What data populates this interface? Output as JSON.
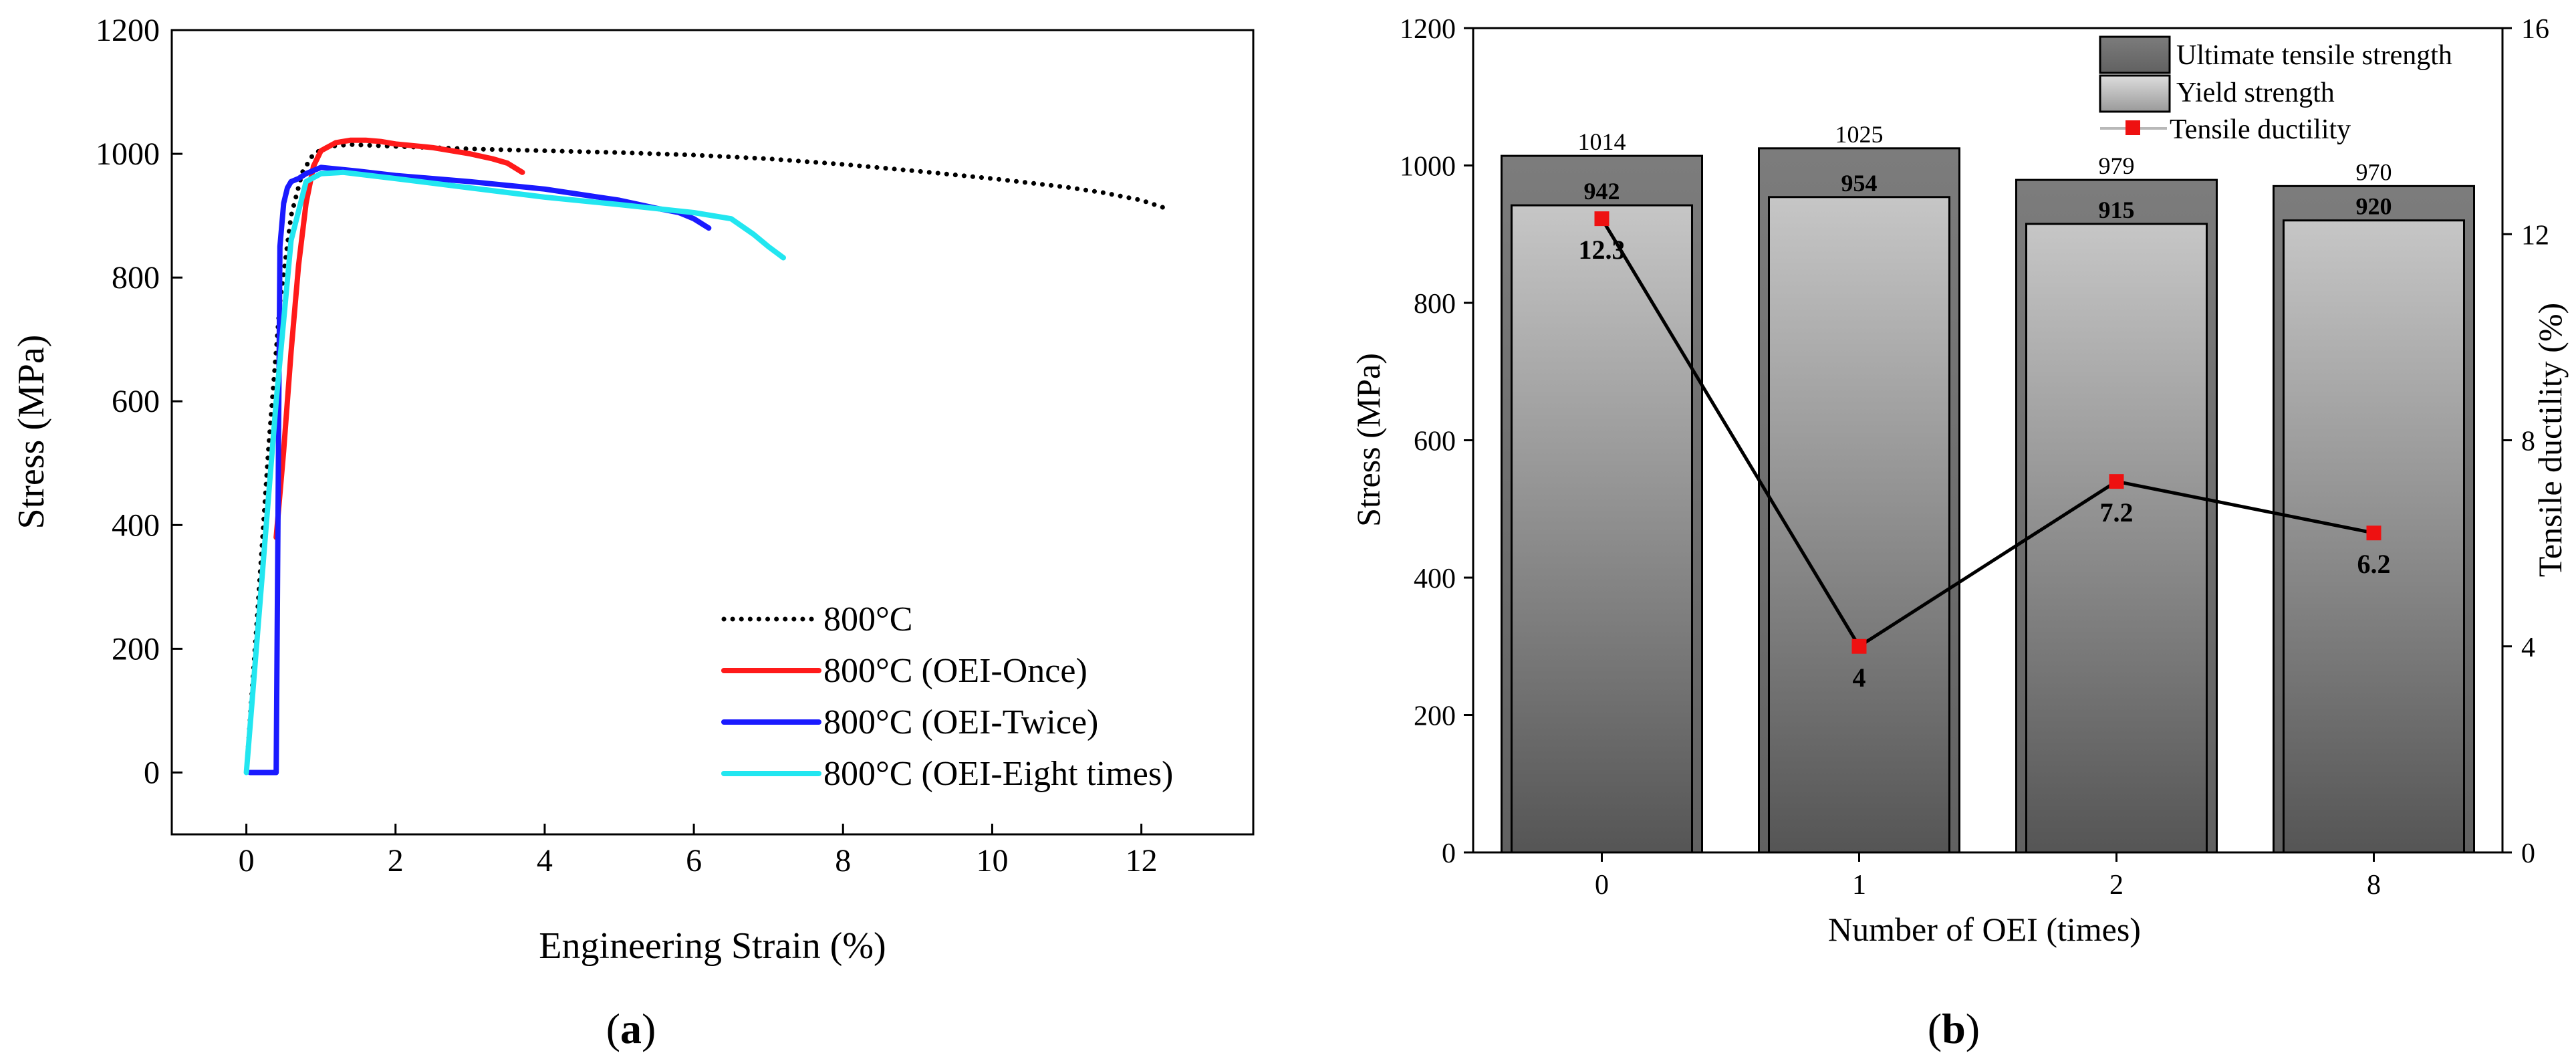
{
  "panels": {
    "a": {
      "caption_letter": "a"
    },
    "b": {
      "caption_letter": "b"
    }
  },
  "chart_data": [
    {
      "id": "a",
      "type": "line",
      "title": "",
      "xlabel": "Engineering Strain (%)",
      "ylabel": "Stress (MPa)",
      "xlim": [
        -1,
        13.5
      ],
      "ylim": [
        -100,
        1200
      ],
      "xticks": [
        0,
        2,
        4,
        6,
        8,
        10,
        12
      ],
      "yticks": [
        0,
        200,
        400,
        600,
        800,
        1000,
        1200
      ],
      "legend_position": "bottom-right",
      "series": [
        {
          "name": "800°C",
          "color": "#000000",
          "style": "dotted",
          "x": [
            0,
            0.15,
            0.3,
            0.45,
            0.6,
            0.75,
            0.9,
            1.1,
            1.4,
            2.0,
            3.0,
            4.0,
            5.0,
            6.0,
            7.0,
            8.0,
            9.0,
            10.0,
            11.0,
            11.5,
            12.0,
            12.3
          ],
          "y": [
            0,
            260,
            530,
            760,
            900,
            970,
            1000,
            1012,
            1015,
            1012,
            1008,
            1005,
            1002,
            998,
            992,
            983,
            972,
            960,
            946,
            937,
            925,
            913
          ]
        },
        {
          "name": "800°C (OEI-Once)",
          "color": "#ff1a1a",
          "style": "solid",
          "x": [
            0.4,
            0.5,
            0.6,
            0.7,
            0.8,
            0.9,
            1.0,
            1.2,
            1.4,
            1.6,
            1.8,
            2.0,
            2.5,
            3.0,
            3.3,
            3.5,
            3.7
          ],
          "y": [
            380,
            520,
            680,
            820,
            920,
            980,
            1005,
            1018,
            1022,
            1022,
            1020,
            1016,
            1010,
            1000,
            992,
            985,
            970
          ]
        },
        {
          "name": "800°C (OEI-Twice)",
          "color": "#1a1aff",
          "style": "solid",
          "x": [
            0.05,
            0.1,
            0.2,
            0.3,
            0.4,
            0.45,
            0.5,
            0.55,
            0.6,
            0.7,
            0.8,
            1.0,
            1.5,
            2.0,
            3.0,
            4.0,
            5.0,
            5.5,
            5.8,
            6.0,
            6.2
          ],
          "y": [
            0,
            0,
            0,
            0,
            0,
            850,
            920,
            945,
            955,
            960,
            968,
            978,
            972,
            965,
            955,
            943,
            925,
            912,
            905,
            895,
            880
          ]
        },
        {
          "name": "800°C (OEI-Eight times)",
          "color": "#22e6f0",
          "style": "solid",
          "x": [
            0,
            0.2,
            0.4,
            0.6,
            0.8,
            1.0,
            1.3,
            2.0,
            3.0,
            4.0,
            5.0,
            6.0,
            6.5,
            6.8,
            7.0,
            7.2
          ],
          "y": [
            0,
            300,
            600,
            860,
            955,
            968,
            970,
            960,
            945,
            930,
            918,
            905,
            895,
            870,
            850,
            832
          ]
        }
      ]
    },
    {
      "id": "b",
      "type": "bar",
      "title": "",
      "xlabel": "Number of OEI (times)",
      "ylabel": "Stress (MPa)",
      "y2label": "Tensile ductility (%)",
      "categories": [
        "0",
        "1",
        "2",
        "8"
      ],
      "ylim": [
        0,
        1200
      ],
      "y2lim": [
        0,
        16
      ],
      "yticks": [
        0,
        200,
        400,
        600,
        800,
        1000,
        1200
      ],
      "y2ticks": [
        0,
        4,
        8,
        12,
        16
      ],
      "legend_position": "top-right",
      "series": [
        {
          "name": "Ultimate tensile strength",
          "kind": "bar",
          "axis": "left",
          "color": "#6e6e6e",
          "values": [
            1014,
            1025,
            979,
            970
          ],
          "labels": [
            "1014",
            "1025",
            "979",
            "970"
          ]
        },
        {
          "name": "Yield strength",
          "kind": "bar",
          "axis": "left",
          "color": "#c4c4c4",
          "values": [
            942,
            954,
            915,
            920
          ],
          "labels": [
            "942",
            "954",
            "915",
            "920"
          ]
        },
        {
          "name": "Tensile ductility",
          "kind": "line",
          "axis": "right",
          "color": "#ee1111",
          "values": [
            12.3,
            4,
            7.2,
            6.2
          ],
          "labels": [
            "12.3",
            "4",
            "7.2",
            "6.2"
          ]
        }
      ]
    }
  ]
}
